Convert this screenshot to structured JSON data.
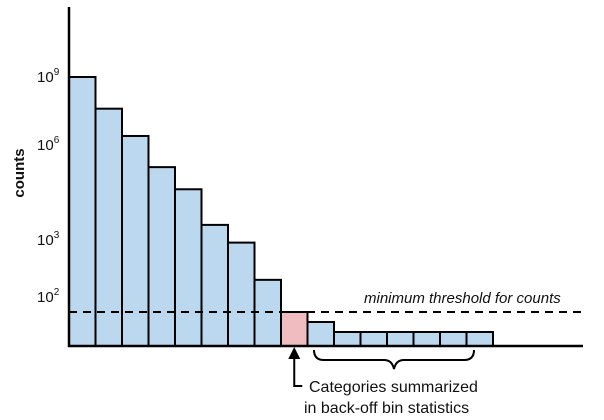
{
  "chart_data": {
    "type": "bar",
    "ylabel": "counts",
    "yscale": "log",
    "yticks": [
      {
        "base": "10",
        "exp": "9",
        "value": 1000000000
      },
      {
        "base": "10",
        "exp": "6",
        "value": 1000000
      },
      {
        "base": "10",
        "exp": "3",
        "value": 1000
      },
      {
        "base": "10",
        "exp": "2",
        "value": 100
      }
    ],
    "values": [
      1000000000,
      40000000,
      2500000,
      200000,
      40000,
      3000,
      900,
      200,
      60,
      30,
      15,
      15,
      15,
      15,
      15,
      15
    ],
    "backoff_index": 8,
    "threshold": 60,
    "threshold_label": "minimum threshold for counts",
    "annotation": {
      "line1": "Categories summarized",
      "line2": "in back-off bin statistics"
    },
    "colors": {
      "bar": "#bcd8ee",
      "backoff_bar": "#f0bcc0",
      "outline": "#000000"
    },
    "grid": false,
    "legend": "none"
  }
}
